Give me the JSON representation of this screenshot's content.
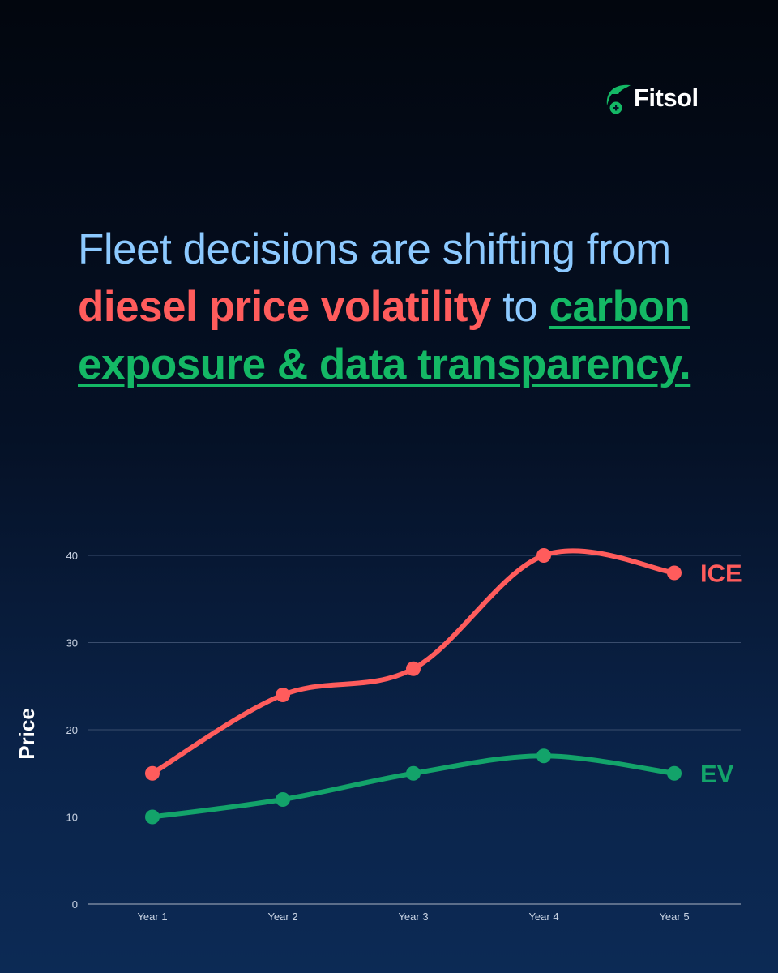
{
  "brand": {
    "name": "Fitsol",
    "logo_icon": "leaf-plug-icon",
    "color": "#14b865"
  },
  "headline": {
    "part1": "Fleet decisions are shifting from ",
    "red1": "diesel",
    "space": " ",
    "red2": "price volatility",
    "part2": " to ",
    "green": "carbon exposure & data transparency."
  },
  "colors": {
    "ice": "#ff5c5c",
    "ev": "#13a36a",
    "headline": "#8cc9ff"
  },
  "chart_data": {
    "type": "line",
    "categories": [
      "Year 1",
      "Year 2",
      "Year 3",
      "Year 4",
      "Year 5"
    ],
    "series": [
      {
        "name": "ICE",
        "values": [
          15,
          24,
          27,
          40,
          38
        ],
        "color": "#ff5c5c"
      },
      {
        "name": "EV",
        "values": [
          10,
          12,
          15,
          17,
          15
        ],
        "color": "#13a36a"
      }
    ],
    "ylabel": "Price",
    "ylim": [
      0,
      40
    ],
    "yticks": [
      0,
      10,
      20,
      30,
      40
    ],
    "grid": true,
    "legend": "right, inline labels"
  }
}
